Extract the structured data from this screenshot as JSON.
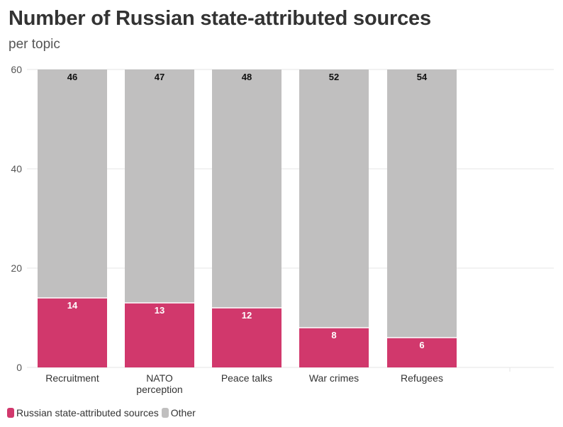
{
  "title": "Number of Russian state-attributed sources",
  "subtitle": "per topic",
  "colors": {
    "russian": "#d1386c",
    "other": "#c0bfbf",
    "grid": "#e6e6e6",
    "axis_text": "#555555"
  },
  "chart_data": {
    "type": "bar",
    "stacked": true,
    "categories": [
      "Recruitment",
      "NATO perception",
      "Peace talks",
      "War crimes",
      "Refugees"
    ],
    "series": [
      {
        "name": "Russian state-attributed sources",
        "values": [
          14,
          13,
          12,
          8,
          6
        ]
      },
      {
        "name": "Other",
        "values": [
          46,
          47,
          48,
          52,
          54
        ]
      }
    ],
    "ylim": [
      0,
      60
    ],
    "yticks": [
      "0",
      "20",
      "40",
      "60"
    ],
    "grid": true,
    "legend": "bottom-left"
  }
}
